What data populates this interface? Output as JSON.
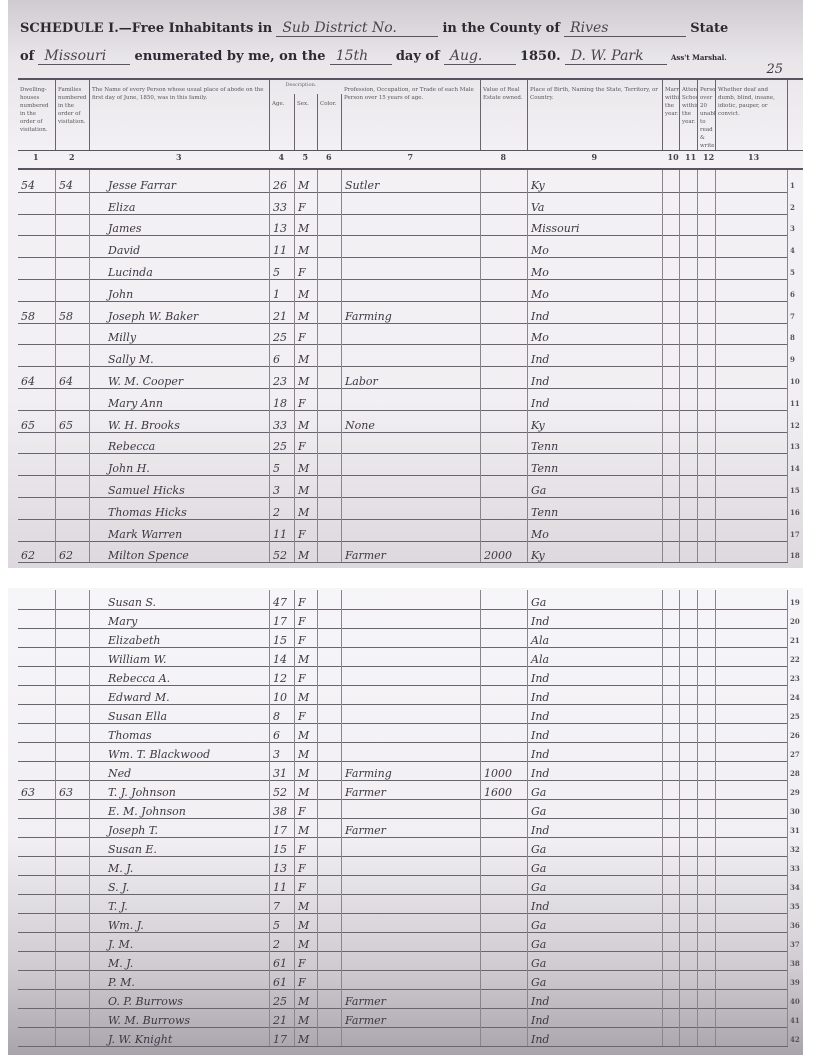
{
  "header": {
    "schedule_label": "SCHEDULE I.—Free Inhabitants in",
    "subdivision": "Sub District No.",
    "county_label": "in the County of",
    "county": "Rives",
    "state_label": "State",
    "of_label": "of",
    "state": "Missouri",
    "enumerated_label": "enumerated by me, on the",
    "day": "15th",
    "day_of_label": "day of",
    "month": "Aug.",
    "year_label": "1850.",
    "marshal_signature": "D. W. Park",
    "marshal_label": "Ass't Marshal.",
    "page_number": "25"
  },
  "columns": [
    {
      "num": "1",
      "label": "Dwelling-houses numbered in the order of visitation."
    },
    {
      "num": "2",
      "label": "Families numbered in the order of visitation."
    },
    {
      "num": "3",
      "label": "The Name of every Person whose usual place of abode on the first day of June, 1850, was in this family."
    },
    {
      "num": "4",
      "label": "Age."
    },
    {
      "num": "5",
      "label": "Sex."
    },
    {
      "num": "6",
      "label": "Color."
    },
    {
      "num": "7",
      "label": "Profession, Occupation, or Trade of each Male Person over 15 years of age."
    },
    {
      "num": "8",
      "label": "Value of Real Estate owned."
    },
    {
      "num": "9",
      "label": "Place of Birth, Naming the State, Territory, or Country."
    },
    {
      "num": "10",
      "label": "Married within the year."
    },
    {
      "num": "11",
      "label": "Attended School within the year."
    },
    {
      "num": "12",
      "label": "Persons over 20 unable to read & write."
    },
    {
      "num": "13",
      "label": "Whether deaf and dumb, blind, insane, idiotic, pauper, or convict."
    }
  ],
  "description_label": "Description.",
  "rows": [
    {
      "line": "1",
      "dwelling": "54",
      "family": "54",
      "name": "Jesse Farrar",
      "age": "26",
      "sex": "M",
      "occupation": "Sutler",
      "value": "",
      "birthplace": "Ky"
    },
    {
      "line": "2",
      "dwelling": "",
      "family": "",
      "name": "Eliza",
      "age": "33",
      "sex": "F",
      "occupation": "",
      "value": "",
      "birthplace": "Va"
    },
    {
      "line": "3",
      "dwelling": "",
      "family": "",
      "name": "James",
      "age": "13",
      "sex": "M",
      "occupation": "",
      "value": "",
      "birthplace": "Missouri"
    },
    {
      "line": "4",
      "dwelling": "",
      "family": "",
      "name": "David",
      "age": "11",
      "sex": "M",
      "occupation": "",
      "value": "",
      "birthplace": "Mo"
    },
    {
      "line": "5",
      "dwelling": "",
      "family": "",
      "name": "Lucinda",
      "age": "5",
      "sex": "F",
      "occupation": "",
      "value": "",
      "birthplace": "Mo"
    },
    {
      "line": "6",
      "dwelling": "",
      "family": "",
      "name": "John",
      "age": "1",
      "sex": "M",
      "occupation": "",
      "value": "",
      "birthplace": "Mo"
    },
    {
      "line": "7",
      "dwelling": "58",
      "family": "58",
      "name": "Joseph W. Baker",
      "age": "21",
      "sex": "M",
      "occupation": "Farming",
      "value": "",
      "birthplace": "Ind"
    },
    {
      "line": "8",
      "dwelling": "",
      "family": "",
      "name": "Milly",
      "age": "25",
      "sex": "F",
      "occupation": "",
      "value": "",
      "birthplace": "Mo"
    },
    {
      "line": "9",
      "dwelling": "",
      "family": "",
      "name": "Sally M.",
      "age": "6",
      "sex": "M",
      "occupation": "",
      "value": "",
      "birthplace": "Ind"
    },
    {
      "line": "10",
      "dwelling": "64",
      "family": "64",
      "name": "W. M. Cooper",
      "age": "23",
      "sex": "M",
      "occupation": "Labor",
      "value": "",
      "birthplace": "Ind"
    },
    {
      "line": "11",
      "dwelling": "",
      "family": "",
      "name": "Mary Ann",
      "age": "18",
      "sex": "F",
      "occupation": "",
      "value": "",
      "birthplace": "Ind"
    },
    {
      "line": "12",
      "dwelling": "65",
      "family": "65",
      "name": "W. H. Brooks",
      "age": "33",
      "sex": "M",
      "occupation": "None",
      "value": "",
      "birthplace": "Ky"
    },
    {
      "line": "13",
      "dwelling": "",
      "family": "",
      "name": "Rebecca",
      "age": "25",
      "sex": "F",
      "occupation": "",
      "value": "",
      "birthplace": "Tenn"
    },
    {
      "line": "14",
      "dwelling": "",
      "family": "",
      "name": "John H.",
      "age": "5",
      "sex": "M",
      "occupation": "",
      "value": "",
      "birthplace": "Tenn"
    },
    {
      "line": "15",
      "dwelling": "",
      "family": "",
      "name": "Samuel Hicks",
      "age": "3",
      "sex": "M",
      "occupation": "",
      "value": "",
      "birthplace": "Ga"
    },
    {
      "line": "16",
      "dwelling": "",
      "family": "",
      "name": "Thomas Hicks",
      "age": "2",
      "sex": "M",
      "occupation": "",
      "value": "",
      "birthplace": "Tenn"
    },
    {
      "line": "17",
      "dwelling": "",
      "family": "",
      "name": "Mark Warren",
      "age": "11",
      "sex": "F",
      "occupation": "",
      "value": "",
      "birthplace": "Mo"
    },
    {
      "line": "18",
      "dwelling": "62",
      "family": "62",
      "name": "Milton Spence",
      "age": "52",
      "sex": "M",
      "occupation": "Farmer",
      "value": "2000",
      "birthplace": "Ky"
    },
    {
      "line": "19",
      "dwelling": "",
      "family": "",
      "name": "Susan S.",
      "age": "47",
      "sex": "F",
      "occupation": "",
      "value": "",
      "birthplace": "Ga"
    },
    {
      "line": "20",
      "dwelling": "",
      "family": "",
      "name": "Mary",
      "age": "17",
      "sex": "F",
      "occupation": "",
      "value": "",
      "birthplace": "Ind"
    },
    {
      "line": "21",
      "dwelling": "",
      "family": "",
      "name": "Elizabeth",
      "age": "15",
      "sex": "F",
      "occupation": "",
      "value": "",
      "birthplace": "Ala"
    },
    {
      "line": "22",
      "dwelling": "",
      "family": "",
      "name": "William W.",
      "age": "14",
      "sex": "M",
      "occupation": "",
      "value": "",
      "birthplace": "Ala"
    },
    {
      "line": "23",
      "dwelling": "",
      "family": "",
      "name": "Rebecca A.",
      "age": "12",
      "sex": "F",
      "occupation": "",
      "value": "",
      "birthplace": "Ind"
    },
    {
      "line": "24",
      "dwelling": "",
      "family": "",
      "name": "Edward M.",
      "age": "10",
      "sex": "M",
      "occupation": "",
      "value": "",
      "birthplace": "Ind"
    },
    {
      "line": "25",
      "dwelling": "",
      "family": "",
      "name": "Susan Ella",
      "age": "8",
      "sex": "F",
      "occupation": "",
      "value": "",
      "birthplace": "Ind"
    },
    {
      "line": "26",
      "dwelling": "",
      "family": "",
      "name": "Thomas",
      "age": "6",
      "sex": "M",
      "occupation": "",
      "value": "",
      "birthplace": "Ind"
    },
    {
      "line": "27",
      "dwelling": "",
      "family": "",
      "name": "Wm. T. Blackwood",
      "age": "3",
      "sex": "M",
      "occupation": "",
      "value": "",
      "birthplace": "Ind"
    },
    {
      "line": "28",
      "dwelling": "",
      "family": "",
      "name": "Ned",
      "age": "31",
      "sex": "M",
      "occupation": "Farming",
      "value": "1000",
      "birthplace": "Ind"
    },
    {
      "line": "29",
      "dwelling": "63",
      "family": "63",
      "name": "T. J. Johnson",
      "age": "52",
      "sex": "M",
      "occupation": "Farmer",
      "value": "1600",
      "birthplace": "Ga"
    },
    {
      "line": "30",
      "dwelling": "",
      "family": "",
      "name": "E. M. Johnson",
      "age": "38",
      "sex": "F",
      "occupation": "",
      "value": "",
      "birthplace": "Ga"
    },
    {
      "line": "31",
      "dwelling": "",
      "family": "",
      "name": "Joseph T.",
      "age": "17",
      "sex": "M",
      "occupation": "Farmer",
      "value": "",
      "birthplace": "Ind"
    },
    {
      "line": "32",
      "dwelling": "",
      "family": "",
      "name": "Susan E.",
      "age": "15",
      "sex": "F",
      "occupation": "",
      "value": "",
      "birthplace": "Ga"
    },
    {
      "line": "33",
      "dwelling": "",
      "family": "",
      "name": "M. J.",
      "age": "13",
      "sex": "F",
      "occupation": "",
      "value": "",
      "birthplace": "Ga"
    },
    {
      "line": "34",
      "dwelling": "",
      "family": "",
      "name": "S. J.",
      "age": "11",
      "sex": "F",
      "occupation": "",
      "value": "",
      "birthplace": "Ga"
    },
    {
      "line": "35",
      "dwelling": "",
      "family": "",
      "name": "T. J.",
      "age": "7",
      "sex": "M",
      "occupation": "",
      "value": "",
      "birthplace": "Ind"
    },
    {
      "line": "36",
      "dwelling": "",
      "family": "",
      "name": "Wm. J.",
      "age": "5",
      "sex": "M",
      "occupation": "",
      "value": "",
      "birthplace": "Ga"
    },
    {
      "line": "37",
      "dwelling": "",
      "family": "",
      "name": "J. M.",
      "age": "2",
      "sex": "M",
      "occupation": "",
      "value": "",
      "birthplace": "Ga"
    },
    {
      "line": "38",
      "dwelling": "",
      "family": "",
      "name": "M. J.",
      "age": "61",
      "sex": "F",
      "occupation": "",
      "value": "",
      "birthplace": "Ga"
    },
    {
      "line": "39",
      "dwelling": "",
      "family": "",
      "name": "P. M.",
      "age": "61",
      "sex": "F",
      "occupation": "",
      "value": "",
      "birthplace": "Ga"
    },
    {
      "line": "40",
      "dwelling": "",
      "family": "",
      "name": "O. P. Burrows",
      "age": "25",
      "sex": "M",
      "occupation": "Farmer",
      "value": "",
      "birthplace": "Ind"
    },
    {
      "line": "41",
      "dwelling": "",
      "family": "",
      "name": "W. M. Burrows",
      "age": "21",
      "sex": "M",
      "occupation": "Farmer",
      "value": "",
      "birthplace": "Ind"
    },
    {
      "line": "42",
      "dwelling": "",
      "family": "",
      "name": "J. W. Knight",
      "age": "17",
      "sex": "M",
      "occupation": "",
      "value": "",
      "birthplace": "Ind"
    }
  ]
}
